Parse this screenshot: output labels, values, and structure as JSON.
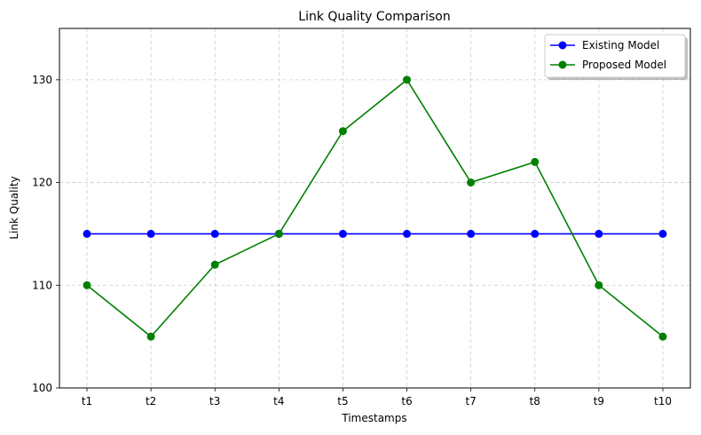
{
  "chart_data": {
    "type": "line",
    "title": "Link Quality Comparison",
    "xlabel": "Timestamps",
    "ylabel": "Link Quality",
    "categories": [
      "t1",
      "t2",
      "t3",
      "t4",
      "t5",
      "t6",
      "t7",
      "t8",
      "t9",
      "t10"
    ],
    "ylim": [
      100,
      135
    ],
    "yticks": [
      100,
      110,
      120,
      130
    ],
    "grid": true,
    "legend_position": "top-right",
    "series": [
      {
        "name": "Existing Model",
        "color": "#0000ff",
        "marker": "circle",
        "values": [
          115,
          115,
          115,
          115,
          115,
          115,
          115,
          115,
          115,
          115
        ]
      },
      {
        "name": "Proposed Model",
        "color": "#008000",
        "marker": "circle",
        "values": [
          110,
          105,
          112,
          115,
          125,
          130,
          120,
          122,
          110,
          105
        ]
      }
    ]
  }
}
